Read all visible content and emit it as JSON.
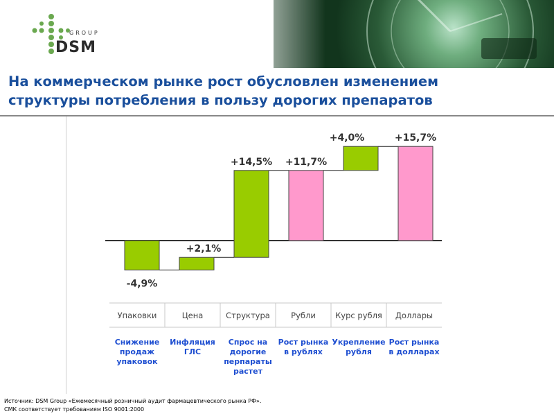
{
  "header": {
    "logo_group": "GROUP",
    "logo_name": "DSM",
    "title_line1": "На коммерческом рынке рост обусловлен изменением",
    "title_line2": "структуры потребления в пользу дорогих препаратов"
  },
  "colors": {
    "green": "#99cc00",
    "pink": "#ff99cc",
    "title_blue": "#1a4f9c",
    "desc_blue": "#1f4fd1"
  },
  "chart_data": {
    "type": "waterfall",
    "baseline_label": "",
    "bars": [
      {
        "category": "Упаковки",
        "value": -4.9,
        "label": "-4,9%",
        "kind": "delta",
        "color": "green",
        "description": [
          "Снижение",
          "продаж",
          "упаковок"
        ]
      },
      {
        "category": "Цена",
        "value": 2.1,
        "label": "+2,1%",
        "kind": "delta",
        "color": "green",
        "description": [
          "Инфляция",
          "ГЛС"
        ]
      },
      {
        "category": "Структура",
        "value": 14.5,
        "label": "+14,5%",
        "kind": "delta",
        "color": "green",
        "description": [
          "Спрос на",
          "дорогие",
          "перпараты",
          "растет"
        ]
      },
      {
        "category": "Рубли",
        "value": 11.7,
        "label": "+11,7%",
        "kind": "total",
        "color": "pink",
        "description": [
          "Рост рынка",
          "в рублях"
        ]
      },
      {
        "category": "Курс рубля",
        "value": 4.0,
        "label": "+4,0%",
        "kind": "delta",
        "color": "green",
        "description": [
          "Укрепление",
          "рубля"
        ]
      },
      {
        "category": "Доллары",
        "value": 15.7,
        "label": "+15,7%",
        "kind": "total",
        "color": "pink",
        "description": [
          "Рост рынка",
          "в долларах"
        ]
      }
    ]
  },
  "footer": {
    "source": "Источник: DSM Group «Ежемесячный розничный аудит фармацевтического рынка РФ».",
    "iso": "СМК соответствует требованиям ISO 9001:2000"
  }
}
